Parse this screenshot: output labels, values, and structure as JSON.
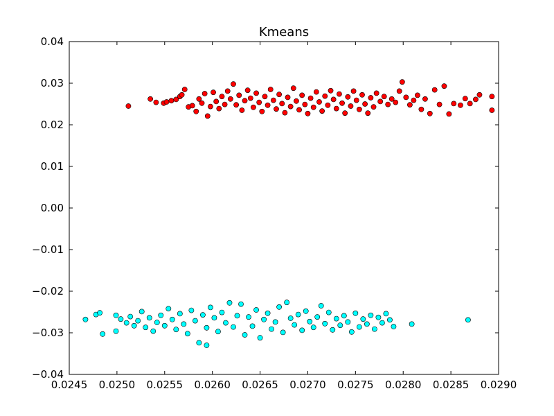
{
  "chart_data": {
    "type": "scatter",
    "title": "Kmeans",
    "xlabel": "",
    "ylabel": "",
    "xlim": [
      0.0245,
      0.029
    ],
    "ylim": [
      -0.04,
      0.04
    ],
    "xticks": [
      "0.0245",
      "0.0250",
      "0.0255",
      "0.0260",
      "0.0265",
      "0.0270",
      "0.0275",
      "0.0280",
      "0.0285",
      "0.0290"
    ],
    "yticks": [
      "−0.04",
      "−0.03",
      "−0.02",
      "−0.01",
      "0.00",
      "0.01",
      "0.02",
      "0.03",
      "0.04"
    ],
    "grid": false,
    "legend": "none",
    "series": [
      {
        "color": "#ff0000",
        "points": [
          [
            0.02512,
            0.0245
          ],
          [
            0.02535,
            0.0262
          ],
          [
            0.02541,
            0.0254
          ],
          [
            0.02549,
            0.0252
          ],
          [
            0.02552,
            0.0255
          ],
          [
            0.02557,
            0.0258
          ],
          [
            0.02562,
            0.0261
          ],
          [
            0.02566,
            0.0268
          ],
          [
            0.02568,
            0.0272
          ],
          [
            0.02571,
            0.0285
          ],
          [
            0.02575,
            0.0243
          ],
          [
            0.02579,
            0.0246
          ],
          [
            0.02583,
            0.0232
          ],
          [
            0.02586,
            0.0262
          ],
          [
            0.02589,
            0.0252
          ],
          [
            0.02592,
            0.0275
          ],
          [
            0.02595,
            0.0221
          ],
          [
            0.02598,
            0.0244
          ],
          [
            0.02601,
            0.0278
          ],
          [
            0.02604,
            0.0256
          ],
          [
            0.02607,
            0.0239
          ],
          [
            0.0261,
            0.0268
          ],
          [
            0.02613,
            0.0249
          ],
          [
            0.02616,
            0.0281
          ],
          [
            0.02619,
            0.0262
          ],
          [
            0.02622,
            0.0298
          ],
          [
            0.02625,
            0.0248
          ],
          [
            0.02628,
            0.0271
          ],
          [
            0.02631,
            0.0235
          ],
          [
            0.02634,
            0.0258
          ],
          [
            0.02637,
            0.0283
          ],
          [
            0.0264,
            0.0264
          ],
          [
            0.02643,
            0.0242
          ],
          [
            0.02646,
            0.0276
          ],
          [
            0.02649,
            0.0254
          ],
          [
            0.02652,
            0.0232
          ],
          [
            0.02655,
            0.0268
          ],
          [
            0.02658,
            0.0247
          ],
          [
            0.02661,
            0.0285
          ],
          [
            0.02664,
            0.0259
          ],
          [
            0.02667,
            0.0238
          ],
          [
            0.0267,
            0.0273
          ],
          [
            0.02673,
            0.0251
          ],
          [
            0.02676,
            0.0229
          ],
          [
            0.02679,
            0.0266
          ],
          [
            0.02682,
            0.0244
          ],
          [
            0.02685,
            0.0288
          ],
          [
            0.02688,
            0.0257
          ],
          [
            0.02691,
            0.0236
          ],
          [
            0.02694,
            0.0271
          ],
          [
            0.02697,
            0.0249
          ],
          [
            0.027,
            0.0227
          ],
          [
            0.02703,
            0.0264
          ],
          [
            0.02706,
            0.0242
          ],
          [
            0.02709,
            0.0279
          ],
          [
            0.02712,
            0.0255
          ],
          [
            0.02715,
            0.0233
          ],
          [
            0.02718,
            0.0269
          ],
          [
            0.02721,
            0.0247
          ],
          [
            0.02724,
            0.0282
          ],
          [
            0.02727,
            0.0261
          ],
          [
            0.0273,
            0.0239
          ],
          [
            0.02733,
            0.0274
          ],
          [
            0.02736,
            0.0252
          ],
          [
            0.02739,
            0.0228
          ],
          [
            0.02742,
            0.0267
          ],
          [
            0.02745,
            0.0245
          ],
          [
            0.02748,
            0.0281
          ],
          [
            0.02751,
            0.0259
          ],
          [
            0.02754,
            0.0237
          ],
          [
            0.02757,
            0.0272
          ],
          [
            0.0276,
            0.025
          ],
          [
            0.02763,
            0.0228
          ],
          [
            0.02766,
            0.0265
          ],
          [
            0.02769,
            0.0243
          ],
          [
            0.02772,
            0.0276
          ],
          [
            0.02776,
            0.0256
          ],
          [
            0.0278,
            0.0268
          ],
          [
            0.02784,
            0.0249
          ],
          [
            0.02788,
            0.0262
          ],
          [
            0.02792,
            0.0254
          ],
          [
            0.02796,
            0.0281
          ],
          [
            0.02799,
            0.0303
          ],
          [
            0.02803,
            0.0266
          ],
          [
            0.02807,
            0.0248
          ],
          [
            0.02811,
            0.0259
          ],
          [
            0.02815,
            0.0271
          ],
          [
            0.02819,
            0.0237
          ],
          [
            0.02823,
            0.0262
          ],
          [
            0.02828,
            0.0227
          ],
          [
            0.02833,
            0.0284
          ],
          [
            0.02838,
            0.0249
          ],
          [
            0.02843,
            0.0293
          ],
          [
            0.02848,
            0.0226
          ],
          [
            0.02853,
            0.0251
          ],
          [
            0.0286,
            0.0247
          ],
          [
            0.02865,
            0.0263
          ],
          [
            0.0287,
            0.0251
          ],
          [
            0.02876,
            0.0261
          ],
          [
            0.0288,
            0.0272
          ],
          [
            0.02893,
            0.0268
          ],
          [
            0.02893,
            0.0235
          ]
        ]
      },
      {
        "color": "#00ffff",
        "points": [
          [
            0.02467,
            -0.0268
          ],
          [
            0.02478,
            -0.0256
          ],
          [
            0.02482,
            -0.0252
          ],
          [
            0.02485,
            -0.0303
          ],
          [
            0.02499,
            -0.0258
          ],
          [
            0.02499,
            -0.0296
          ],
          [
            0.02504,
            -0.0267
          ],
          [
            0.0251,
            -0.0276
          ],
          [
            0.02514,
            -0.0261
          ],
          [
            0.02518,
            -0.0283
          ],
          [
            0.02522,
            -0.0271
          ],
          [
            0.02526,
            -0.0249
          ],
          [
            0.0253,
            -0.0287
          ],
          [
            0.02534,
            -0.0264
          ],
          [
            0.02538,
            -0.0296
          ],
          [
            0.02542,
            -0.0275
          ],
          [
            0.02546,
            -0.0258
          ],
          [
            0.0255,
            -0.0283
          ],
          [
            0.02554,
            -0.0242
          ],
          [
            0.02558,
            -0.0268
          ],
          [
            0.02562,
            -0.0292
          ],
          [
            0.02566,
            -0.0254
          ],
          [
            0.0257,
            -0.0279
          ],
          [
            0.02574,
            -0.0302
          ],
          [
            0.02578,
            -0.0246
          ],
          [
            0.02582,
            -0.0271
          ],
          [
            0.02586,
            -0.0324
          ],
          [
            0.0259,
            -0.0257
          ],
          [
            0.02594,
            -0.0288
          ],
          [
            0.02598,
            -0.0239
          ],
          [
            0.02602,
            -0.0264
          ],
          [
            0.02606,
            -0.0297
          ],
          [
            0.0261,
            -0.0251
          ],
          [
            0.02614,
            -0.0276
          ],
          [
            0.02618,
            -0.0228
          ],
          [
            0.02622,
            -0.0286
          ],
          [
            0.02626,
            -0.0259
          ],
          [
            0.0263,
            -0.0231
          ],
          [
            0.02634,
            -0.0305
          ],
          [
            0.02638,
            -0.0262
          ],
          [
            0.02642,
            -0.0284
          ],
          [
            0.02646,
            -0.0245
          ],
          [
            0.0265,
            -0.0312
          ],
          [
            0.02654,
            -0.0268
          ],
          [
            0.02658,
            -0.0253
          ],
          [
            0.02662,
            -0.0291
          ],
          [
            0.02666,
            -0.0274
          ],
          [
            0.0267,
            -0.0238
          ],
          [
            0.02674,
            -0.0299
          ],
          [
            0.02678,
            -0.0227
          ],
          [
            0.02682,
            -0.0265
          ],
          [
            0.02686,
            -0.0281
          ],
          [
            0.0269,
            -0.0256
          ],
          [
            0.02694,
            -0.0294
          ],
          [
            0.02698,
            -0.0248
          ],
          [
            0.02702,
            -0.0273
          ],
          [
            0.02706,
            -0.0287
          ],
          [
            0.0271,
            -0.0262
          ],
          [
            0.02714,
            -0.0235
          ],
          [
            0.02718,
            -0.0278
          ],
          [
            0.02722,
            -0.0251
          ],
          [
            0.02726,
            -0.0293
          ],
          [
            0.0273,
            -0.0266
          ],
          [
            0.02734,
            -0.0282
          ],
          [
            0.02738,
            -0.0259
          ],
          [
            0.02742,
            -0.0274
          ],
          [
            0.02746,
            -0.0298
          ],
          [
            0.0275,
            -0.0253
          ],
          [
            0.02754,
            -0.0286
          ],
          [
            0.02758,
            -0.0267
          ],
          [
            0.02762,
            -0.0279
          ],
          [
            0.02766,
            -0.0258
          ],
          [
            0.0277,
            -0.0291
          ],
          [
            0.02774,
            -0.0263
          ],
          [
            0.02778,
            -0.0276
          ],
          [
            0.02782,
            -0.0254
          ],
          [
            0.02786,
            -0.0269
          ],
          [
            0.0279,
            -0.0285
          ],
          [
            0.02809,
            -0.0279
          ],
          [
            0.02868,
            -0.0269
          ],
          [
            0.02594,
            -0.033
          ]
        ]
      }
    ]
  }
}
